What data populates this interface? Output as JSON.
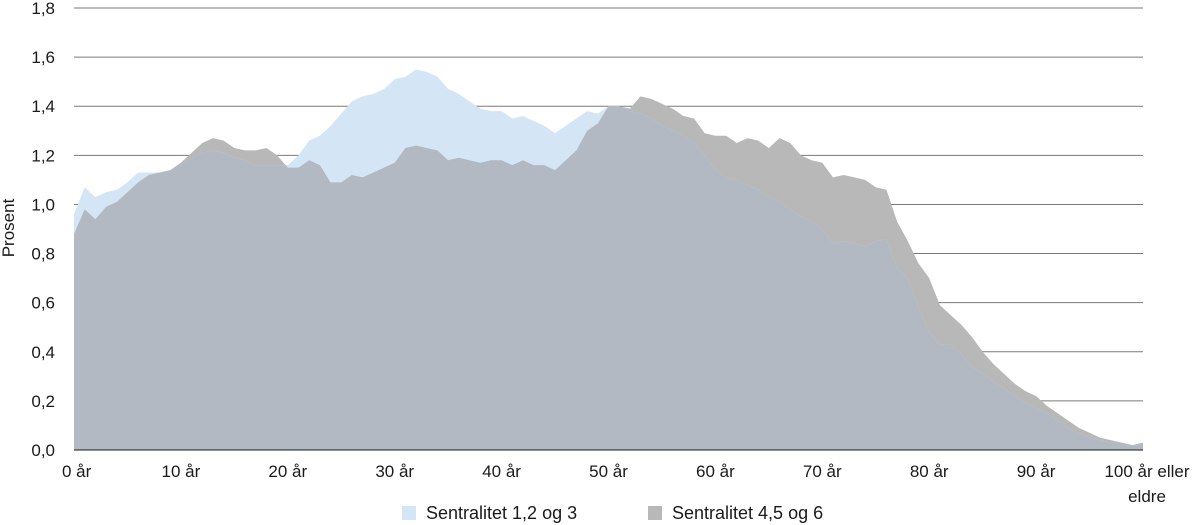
{
  "chart_data": {
    "type": "area",
    "ylabel": "Prosent",
    "xlabel": "",
    "ylim": [
      0,
      1.8
    ],
    "xlim": [
      0,
      100
    ],
    "yticks": [
      "0,0",
      "0,2",
      "0,4",
      "0,6",
      "0,8",
      "1,0",
      "1,2",
      "1,4",
      "1,6",
      "1,8"
    ],
    "yticks_values": [
      0,
      0.2,
      0.4,
      0.6,
      0.8,
      1.0,
      1.2,
      1.4,
      1.6,
      1.8
    ],
    "xticks": [
      {
        "value": 0,
        "label": "0 år"
      },
      {
        "value": 10,
        "label": "10 år"
      },
      {
        "value": 20,
        "label": "20 år"
      },
      {
        "value": 30,
        "label": "30 år"
      },
      {
        "value": 40,
        "label": "40 år"
      },
      {
        "value": 50,
        "label": "50 år"
      },
      {
        "value": 60,
        "label": "60 år"
      },
      {
        "value": 70,
        "label": "70 år"
      },
      {
        "value": 80,
        "label": "80 år"
      },
      {
        "value": 90,
        "label": "90 år"
      },
      {
        "value": 100,
        "label": "100 år eller",
        "label2": "eldre"
      }
    ],
    "grid": true,
    "legend_position": "bottom",
    "series": [
      {
        "name": "Sentralitet 4,5 og 6",
        "color": "#b8b8b8",
        "x": [
          0,
          1,
          2,
          3,
          4,
          5,
          6,
          7,
          8,
          9,
          10,
          11,
          12,
          13,
          14,
          15,
          16,
          17,
          18,
          19,
          20,
          21,
          22,
          23,
          24,
          25,
          26,
          27,
          28,
          29,
          30,
          31,
          32,
          33,
          34,
          35,
          36,
          37,
          38,
          39,
          40,
          41,
          42,
          43,
          44,
          45,
          46,
          47,
          48,
          49,
          50,
          51,
          52,
          53,
          54,
          55,
          56,
          57,
          58,
          59,
          60,
          61,
          62,
          63,
          64,
          65,
          66,
          67,
          68,
          69,
          70,
          71,
          72,
          73,
          74,
          75,
          76,
          77,
          78,
          79,
          80,
          81,
          82,
          83,
          84,
          85,
          86,
          87,
          88,
          89,
          90,
          91,
          92,
          93,
          94,
          95,
          96,
          97,
          98,
          99,
          100
        ],
        "values": [
          0.88,
          0.98,
          0.94,
          0.99,
          1.01,
          1.05,
          1.09,
          1.12,
          1.13,
          1.14,
          1.17,
          1.21,
          1.25,
          1.27,
          1.26,
          1.23,
          1.22,
          1.22,
          1.23,
          1.2,
          1.15,
          1.15,
          1.18,
          1.16,
          1.09,
          1.09,
          1.12,
          1.11,
          1.13,
          1.15,
          1.17,
          1.23,
          1.24,
          1.23,
          1.22,
          1.18,
          1.19,
          1.18,
          1.17,
          1.18,
          1.18,
          1.16,
          1.18,
          1.16,
          1.16,
          1.14,
          1.18,
          1.22,
          1.3,
          1.33,
          1.4,
          1.4,
          1.39,
          1.44,
          1.43,
          1.41,
          1.39,
          1.36,
          1.35,
          1.29,
          1.28,
          1.28,
          1.25,
          1.27,
          1.26,
          1.23,
          1.27,
          1.25,
          1.2,
          1.18,
          1.17,
          1.11,
          1.12,
          1.11,
          1.1,
          1.07,
          1.06,
          0.93,
          0.85,
          0.76,
          0.7,
          0.59,
          0.55,
          0.51,
          0.46,
          0.4,
          0.35,
          0.31,
          0.27,
          0.24,
          0.22,
          0.18,
          0.15,
          0.12,
          0.09,
          0.07,
          0.05,
          0.04,
          0.03,
          0.02,
          0.03
        ]
      },
      {
        "name": "Sentralitet 1,2 og 3",
        "color": "#d4e5f5",
        "x": [
          0,
          1,
          2,
          3,
          4,
          5,
          6,
          7,
          8,
          9,
          10,
          11,
          12,
          13,
          14,
          15,
          16,
          17,
          18,
          19,
          20,
          21,
          22,
          23,
          24,
          25,
          26,
          27,
          28,
          29,
          30,
          31,
          32,
          33,
          34,
          35,
          36,
          37,
          38,
          39,
          40,
          41,
          42,
          43,
          44,
          45,
          46,
          47,
          48,
          49,
          50,
          51,
          52,
          53,
          54,
          55,
          56,
          57,
          58,
          59,
          60,
          61,
          62,
          63,
          64,
          65,
          66,
          67,
          68,
          69,
          70,
          71,
          72,
          73,
          74,
          75,
          76,
          77,
          78,
          79,
          80,
          81,
          82,
          83,
          84,
          85,
          86,
          87,
          88,
          89,
          90,
          91,
          92,
          93,
          94,
          95,
          96,
          97,
          98,
          99,
          100
        ],
        "values": [
          0.96,
          1.07,
          1.03,
          1.05,
          1.06,
          1.09,
          1.13,
          1.13,
          1.13,
          1.14,
          1.16,
          1.19,
          1.21,
          1.22,
          1.21,
          1.19,
          1.18,
          1.16,
          1.16,
          1.16,
          1.16,
          1.2,
          1.26,
          1.28,
          1.32,
          1.37,
          1.42,
          1.44,
          1.45,
          1.47,
          1.51,
          1.52,
          1.55,
          1.54,
          1.52,
          1.47,
          1.45,
          1.42,
          1.39,
          1.38,
          1.38,
          1.35,
          1.36,
          1.34,
          1.32,
          1.29,
          1.32,
          1.35,
          1.38,
          1.37,
          1.4,
          1.4,
          1.38,
          1.37,
          1.35,
          1.32,
          1.3,
          1.28,
          1.25,
          1.2,
          1.14,
          1.11,
          1.1,
          1.08,
          1.06,
          1.03,
          1.01,
          0.98,
          0.95,
          0.93,
          0.9,
          0.84,
          0.85,
          0.84,
          0.83,
          0.85,
          0.86,
          0.74,
          0.7,
          0.58,
          0.48,
          0.43,
          0.43,
          0.39,
          0.34,
          0.31,
          0.28,
          0.25,
          0.22,
          0.19,
          0.17,
          0.15,
          0.12,
          0.09,
          0.07,
          0.05,
          0.04,
          0.03,
          0.03,
          0.02,
          0.02
        ]
      }
    ],
    "legend": [
      {
        "label": "Sentralitet 1,2 og 3",
        "color": "#d4e5f5"
      },
      {
        "label": "Sentralitet 4,5 og 6",
        "color": "#b8b8b8"
      }
    ],
    "overlap_color": "#b3b9c3"
  }
}
